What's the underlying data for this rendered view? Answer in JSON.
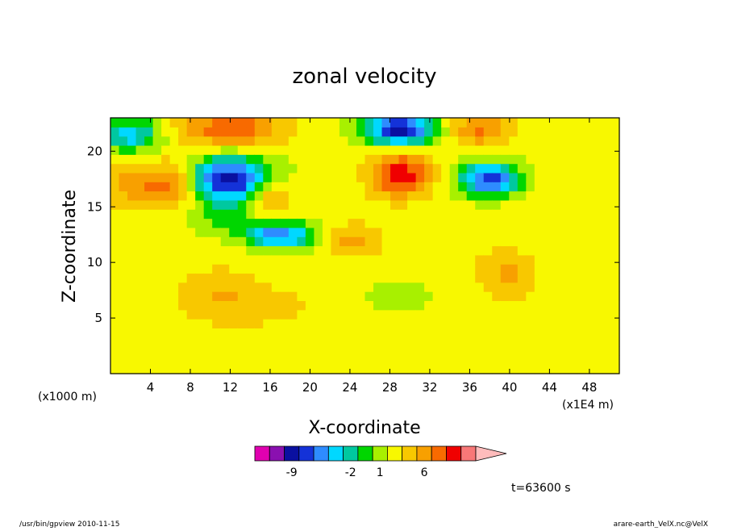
{
  "chart_data": {
    "type": "heatmap",
    "title": "zonal velocity",
    "xlabel": "X-coordinate",
    "ylabel": "Z-coordinate",
    "x_unit_label": "(x1E4 m)",
    "y_unit_label": "(x1000 m)",
    "xlim": [
      0,
      51
    ],
    "ylim": [
      0,
      23
    ],
    "x_ticks": [
      4,
      8,
      12,
      16,
      20,
      24,
      28,
      32,
      36,
      40,
      44,
      48
    ],
    "y_ticks": [
      5,
      10,
      15,
      20
    ],
    "time_label": "t=63600 s",
    "colorbar": {
      "levels": [
        {
          "color": "#e000b0"
        },
        {
          "color": "#8a10b0"
        },
        {
          "color": "#0a10a0"
        },
        {
          "color": "#1432d8"
        },
        {
          "color": "#2e8cff"
        },
        {
          "color": "#00d8ff"
        },
        {
          "color": "#00c8a0"
        },
        {
          "color": "#00d600"
        },
        {
          "color": "#a8f000"
        },
        {
          "color": "#f8f800"
        },
        {
          "color": "#f8c800"
        },
        {
          "color": "#f8a000"
        },
        {
          "color": "#f86a00"
        },
        {
          "color": "#f00000"
        },
        {
          "color": "#f87878"
        },
        {
          "color": "#ffbcbc"
        }
      ],
      "tick_labels": [
        {
          "label": "-9",
          "index": 2
        },
        {
          "label": "-2",
          "index": 6
        },
        {
          "label": "1",
          "index": 8
        },
        {
          "label": "6",
          "index": 11
        }
      ]
    },
    "fields": [
      {
        "x": 2,
        "z": 21.5,
        "rx": 3,
        "rz": 1.5,
        "v": -4.5
      },
      {
        "x": 2,
        "z": 17,
        "rx": 2.5,
        "rz": 2,
        "v": 3
      },
      {
        "x": 6,
        "z": 17,
        "rx": 2.5,
        "rz": 2,
        "v": 4.5
      },
      {
        "x": 12,
        "z": 22,
        "rx": 5,
        "rz": 1.5,
        "v": 5
      },
      {
        "x": 12,
        "z": 17.5,
        "rx": 4,
        "rz": 2,
        "v": -8
      },
      {
        "x": 11,
        "z": 14,
        "rx": 3,
        "rz": 1.5,
        "v": -1.5
      },
      {
        "x": 16,
        "z": 16,
        "rx": 2,
        "rz": 1.5,
        "v": 3.5
      },
      {
        "x": 17,
        "z": 12.5,
        "rx": 3.5,
        "rz": 1.2,
        "v": -6
      },
      {
        "x": 17,
        "z": 6,
        "rx": 4,
        "rz": 2,
        "v": 1.5
      },
      {
        "x": 11,
        "z": 7,
        "rx": 4,
        "rz": 2.5,
        "v": 2.5
      },
      {
        "x": 21,
        "z": 15,
        "rx": 2,
        "rz": 2.5,
        "v": 0.2
      },
      {
        "x": 24,
        "z": 12,
        "rx": 3,
        "rz": 1.5,
        "v": 3
      },
      {
        "x": 29,
        "z": 22,
        "rx": 3.5,
        "rz": 1.5,
        "v": -8
      },
      {
        "x": 29,
        "z": 18,
        "rx": 3,
        "rz": 2,
        "v": 6
      },
      {
        "x": 29,
        "z": 7,
        "rx": 3.5,
        "rz": 1.5,
        "v": -1
      },
      {
        "x": 37,
        "z": 22,
        "rx": 3,
        "rz": 1.5,
        "v": 4
      },
      {
        "x": 38,
        "z": 17.5,
        "rx": 3,
        "rz": 1.5,
        "v": -7
      },
      {
        "x": 36,
        "z": 10,
        "rx": 4,
        "rz": 4,
        "v": 1
      },
      {
        "x": 40,
        "z": 9,
        "rx": 2.5,
        "rz": 2,
        "v": 2.5
      },
      {
        "x": 46,
        "z": 5,
        "rx": 5,
        "rz": 5,
        "v": 1
      }
    ],
    "background_value": 0.5
  },
  "footer": {
    "left": "/usr/bin/gpview   2010-11-15",
    "right": "arare-earth_VelX.nc@VelX"
  }
}
